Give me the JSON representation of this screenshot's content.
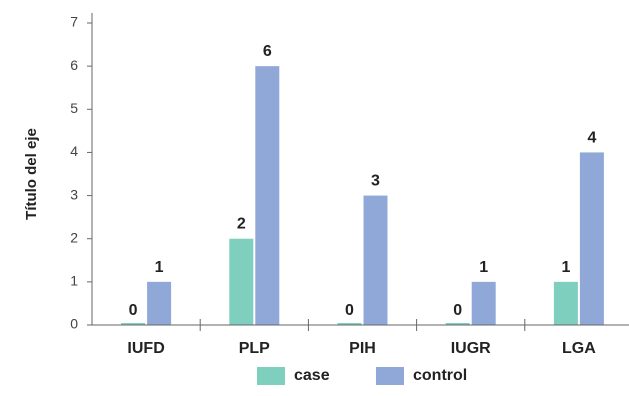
{
  "chart_data": {
    "type": "bar",
    "categories": [
      "IUFD",
      "PLP",
      "PIH",
      "IUGR",
      "LGA"
    ],
    "series": [
      {
        "name": "case",
        "values": [
          0,
          2,
          0,
          0,
          1
        ],
        "color": "#7fcfbf"
      },
      {
        "name": "control",
        "values": [
          1,
          6,
          3,
          1,
          4
        ],
        "color": "#90a8d8"
      }
    ],
    "ylabel": "Título del eje",
    "xlabel": "",
    "ylim": [
      0,
      7
    ],
    "yticks": [
      0,
      1,
      2,
      3,
      4,
      5,
      6,
      7
    ],
    "grid": false,
    "legend_position": "bottom",
    "data_labels": true
  }
}
